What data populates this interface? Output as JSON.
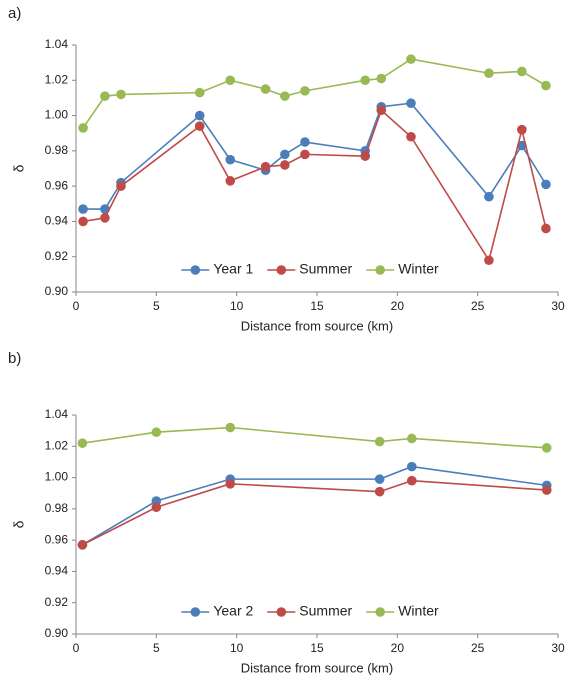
{
  "chart_data": [
    {
      "type": "line",
      "panel_label": "a)",
      "xlabel": "Distance from source (km)",
      "ylabel": "δ",
      "x": [
        0.44,
        1.8,
        2.8,
        7.7,
        9.6,
        11.8,
        13.0,
        14.25,
        18.0,
        19.0,
        20.85,
        25.7,
        27.75,
        29.25
      ],
      "series": [
        {
          "name": "Year 1",
          "color": "#4a7ebb",
          "values": [
            0.947,
            0.947,
            0.962,
            1.0,
            0.975,
            0.969,
            0.978,
            0.985,
            0.98,
            1.005,
            1.007,
            0.954,
            0.983,
            0.961
          ]
        },
        {
          "name": "Summer",
          "color": "#be4b48",
          "values": [
            0.94,
            0.942,
            0.96,
            0.994,
            0.963,
            0.971,
            0.972,
            0.978,
            0.977,
            1.003,
            0.988,
            0.918,
            0.992,
            0.936
          ]
        },
        {
          "name": "Winter",
          "color": "#98b954",
          "values": [
            0.993,
            1.011,
            1.012,
            1.013,
            1.02,
            1.015,
            1.011,
            1.014,
            1.02,
            1.021,
            1.032,
            1.024,
            1.025,
            1.017
          ]
        }
      ],
      "xlim": [
        0,
        30
      ],
      "xticks": [
        0,
        5,
        10,
        15,
        20,
        25,
        30
      ],
      "ylim": [
        0.9,
        1.04
      ],
      "yticks": [
        {
          "value": 0.9,
          "label": "0.90"
        },
        0.92,
        0.94,
        0.96,
        0.98,
        {
          "value": 1.0,
          "label": "1.00"
        },
        1.02,
        1.04
      ],
      "legend": "lower center"
    },
    {
      "type": "line",
      "panel_label": "b)",
      "xlabel": "Distance from source (km)",
      "ylabel": "δ",
      "x": [
        0.4,
        5.0,
        9.6,
        18.9,
        20.9,
        29.3
      ],
      "series": [
        {
          "name": "Year 2",
          "color": "#4a7ebb",
          "values": [
            0.957,
            0.985,
            0.999,
            0.999,
            1.007,
            0.995
          ]
        },
        {
          "name": "Summer",
          "color": "#be4b48",
          "values": [
            0.957,
            0.981,
            0.996,
            0.991,
            0.998,
            0.992
          ]
        },
        {
          "name": "Winter",
          "color": "#98b954",
          "values": [
            1.022,
            1.029,
            1.032,
            1.023,
            1.025,
            1.019
          ]
        }
      ],
      "xlim": [
        0,
        30
      ],
      "xticks": [
        0,
        5,
        10,
        15,
        20,
        25,
        30
      ],
      "ylim": [
        0.9,
        1.04
      ],
      "yticks": [
        {
          "value": 0.9,
          "label": "0.90"
        },
        0.92,
        0.94,
        0.96,
        0.98,
        {
          "value": 1.0,
          "label": "1.00"
        },
        1.02,
        1.04
      ],
      "legend": "lower center"
    }
  ]
}
